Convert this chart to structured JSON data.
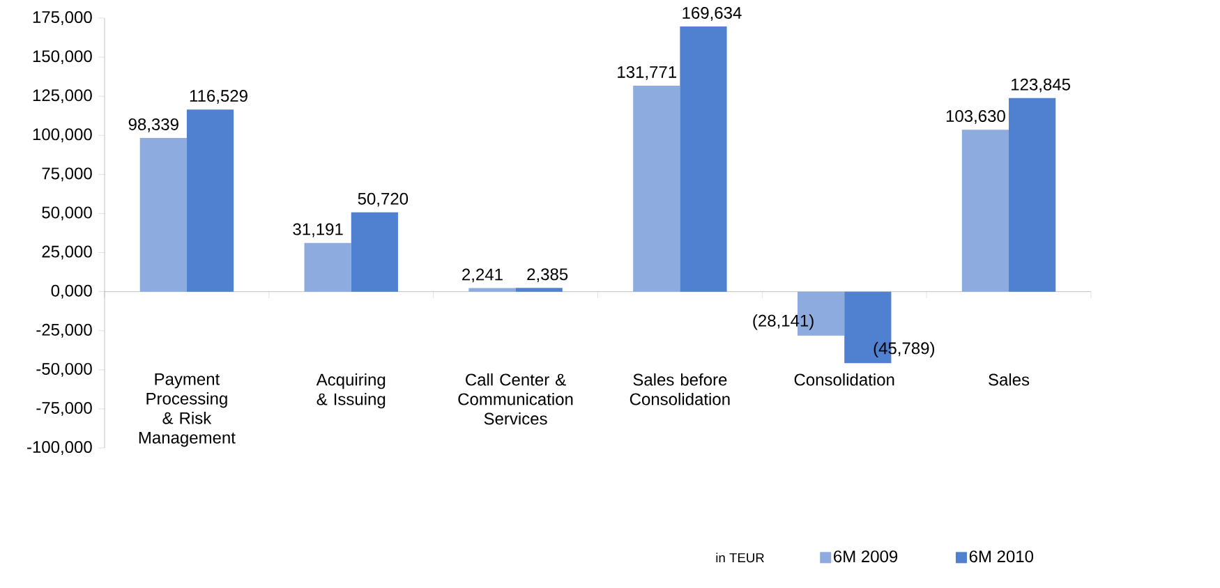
{
  "chart_data": {
    "type": "bar",
    "categories": [
      "Payment Processing & Risk Management",
      "Acquiring & Issuing",
      "Call Center & Communication Services",
      "Sales before Consolidation",
      "Consolidation",
      "Sales"
    ],
    "series": [
      {
        "name": "6M 2009",
        "color": "#8eabdf",
        "values": [
          98339,
          31191,
          2241,
          131771,
          -28141,
          103630
        ],
        "value_labels": [
          "98,339",
          "31,191",
          "2,241",
          "131,771",
          "(28,141)",
          "103,630"
        ]
      },
      {
        "name": "6M 2010",
        "color": "#4f81d0",
        "values": [
          116529,
          50720,
          2385,
          169634,
          -45789,
          123845
        ],
        "value_labels": [
          "116,529",
          "50,720",
          "2,385",
          "169,634",
          "(45,789)",
          "123,845"
        ]
      }
    ],
    "ylim": [
      -100000,
      175000
    ],
    "yticks": [
      {
        "value": -100000,
        "label": "-100,000"
      },
      {
        "value": -75000,
        "label": "-75,000"
      },
      {
        "value": -50000,
        "label": "-50,000"
      },
      {
        "value": -25000,
        "label": "-25,000"
      },
      {
        "value": 0,
        "label": "0,000"
      },
      {
        "value": 25000,
        "label": "25,000"
      },
      {
        "value": 50000,
        "label": "50,000"
      },
      {
        "value": 75000,
        "label": "75,000"
      },
      {
        "value": 100000,
        "label": "100,000"
      },
      {
        "value": 125000,
        "label": "125,000"
      },
      {
        "value": 150000,
        "label": "150,000"
      },
      {
        "value": 175000,
        "label": "175,000"
      }
    ],
    "legend": "bottom right",
    "annotations": [
      "in TEUR"
    ]
  }
}
